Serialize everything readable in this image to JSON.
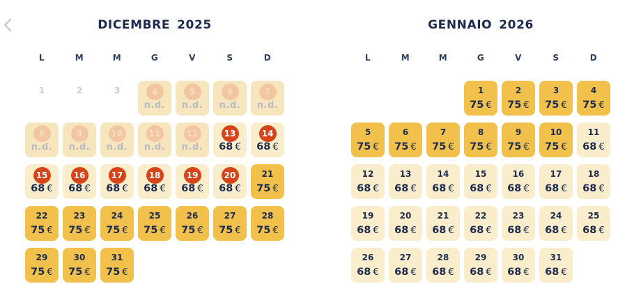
{
  "nav": {
    "prev_button": "previous-month"
  },
  "currency_symbol": "€",
  "na_label": "n.d.",
  "colors": {
    "navy": "#1c2b4d",
    "weekday": "#2c4162",
    "gold": "#f2c14c",
    "cream": "#f9edcb",
    "na-bg": "#f7e6bd",
    "red": "#d8441a",
    "faded-circle": "#f2c6a0",
    "faded-circle-text": "#f8dcc1",
    "gray-day": "#c6cbd4",
    "na-text": "#b8bcc2",
    "chevron": "#c9cdd3"
  },
  "calendars": [
    {
      "id": "dicembre-2025",
      "month": "DICEMBRE",
      "year": "2025",
      "weekdays": [
        "L",
        "M",
        "M",
        "G",
        "V",
        "S",
        "D"
      ],
      "weeks": [
        [
          {
            "day": "1",
            "type": "plain"
          },
          {
            "day": "2",
            "type": "plain"
          },
          {
            "day": "3",
            "type": "plain"
          },
          {
            "day": "4",
            "type": "na"
          },
          {
            "day": "5",
            "type": "na"
          },
          {
            "day": "6",
            "type": "na"
          },
          {
            "day": "7",
            "type": "na"
          }
        ],
        [
          {
            "day": "8",
            "type": "na"
          },
          {
            "day": "9",
            "type": "na"
          },
          {
            "day": "10",
            "type": "na"
          },
          {
            "day": "11",
            "type": "na"
          },
          {
            "day": "12",
            "type": "na"
          },
          {
            "day": "13",
            "type": "marked",
            "price": "68"
          },
          {
            "day": "14",
            "type": "marked",
            "price": "68"
          }
        ],
        [
          {
            "day": "15",
            "type": "marked",
            "price": "68"
          },
          {
            "day": "16",
            "type": "marked",
            "price": "68"
          },
          {
            "day": "17",
            "type": "marked",
            "price": "68"
          },
          {
            "day": "18",
            "type": "marked",
            "price": "68"
          },
          {
            "day": "19",
            "type": "marked",
            "price": "68"
          },
          {
            "day": "20",
            "type": "marked",
            "price": "68"
          },
          {
            "day": "21",
            "type": "gold",
            "price": "75"
          }
        ],
        [
          {
            "day": "22",
            "type": "gold",
            "price": "75"
          },
          {
            "day": "23",
            "type": "gold",
            "price": "75"
          },
          {
            "day": "24",
            "type": "gold",
            "price": "75"
          },
          {
            "day": "25",
            "type": "gold",
            "price": "75"
          },
          {
            "day": "26",
            "type": "gold",
            "price": "75"
          },
          {
            "day": "27",
            "type": "gold",
            "price": "75"
          },
          {
            "day": "28",
            "type": "gold",
            "price": "75"
          }
        ],
        [
          {
            "day": "29",
            "type": "gold",
            "price": "75"
          },
          {
            "day": "30",
            "type": "gold",
            "price": "75"
          },
          {
            "day": "31",
            "type": "gold",
            "price": "75"
          },
          null,
          null,
          null,
          null
        ]
      ]
    },
    {
      "id": "gennaio-2026",
      "month": "GENNAIO",
      "year": "2026",
      "weekdays": [
        "L",
        "M",
        "M",
        "G",
        "V",
        "S",
        "D"
      ],
      "weeks": [
        [
          null,
          null,
          null,
          {
            "day": "1",
            "type": "gold",
            "price": "75"
          },
          {
            "day": "2",
            "type": "gold",
            "price": "75"
          },
          {
            "day": "3",
            "type": "gold",
            "price": "75"
          },
          {
            "day": "4",
            "type": "gold",
            "price": "75"
          }
        ],
        [
          {
            "day": "5",
            "type": "gold",
            "price": "75"
          },
          {
            "day": "6",
            "type": "gold",
            "price": "75"
          },
          {
            "day": "7",
            "type": "gold",
            "price": "75"
          },
          {
            "day": "8",
            "type": "gold",
            "price": "75"
          },
          {
            "day": "9",
            "type": "gold",
            "price": "75"
          },
          {
            "day": "10",
            "type": "gold",
            "price": "75"
          },
          {
            "day": "11",
            "type": "cream",
            "price": "68"
          }
        ],
        [
          {
            "day": "12",
            "type": "cream",
            "price": "68"
          },
          {
            "day": "13",
            "type": "cream",
            "price": "68"
          },
          {
            "day": "14",
            "type": "cream",
            "price": "68"
          },
          {
            "day": "15",
            "type": "cream",
            "price": "68"
          },
          {
            "day": "16",
            "type": "cream",
            "price": "68"
          },
          {
            "day": "17",
            "type": "cream",
            "price": "68"
          },
          {
            "day": "18",
            "type": "cream",
            "price": "68"
          }
        ],
        [
          {
            "day": "19",
            "type": "cream",
            "price": "68"
          },
          {
            "day": "20",
            "type": "cream",
            "price": "68"
          },
          {
            "day": "21",
            "type": "cream",
            "price": "68"
          },
          {
            "day": "22",
            "type": "cream",
            "price": "68"
          },
          {
            "day": "23",
            "type": "cream",
            "price": "68"
          },
          {
            "day": "24",
            "type": "cream",
            "price": "68"
          },
          {
            "day": "25",
            "type": "cream",
            "price": "68"
          }
        ],
        [
          {
            "day": "26",
            "type": "cream",
            "price": "68"
          },
          {
            "day": "27",
            "type": "cream",
            "price": "68"
          },
          {
            "day": "28",
            "type": "cream",
            "price": "68"
          },
          {
            "day": "29",
            "type": "cream",
            "price": "68"
          },
          {
            "day": "30",
            "type": "cream",
            "price": "68"
          },
          {
            "day": "31",
            "type": "cream",
            "price": "68"
          },
          null
        ]
      ]
    }
  ]
}
